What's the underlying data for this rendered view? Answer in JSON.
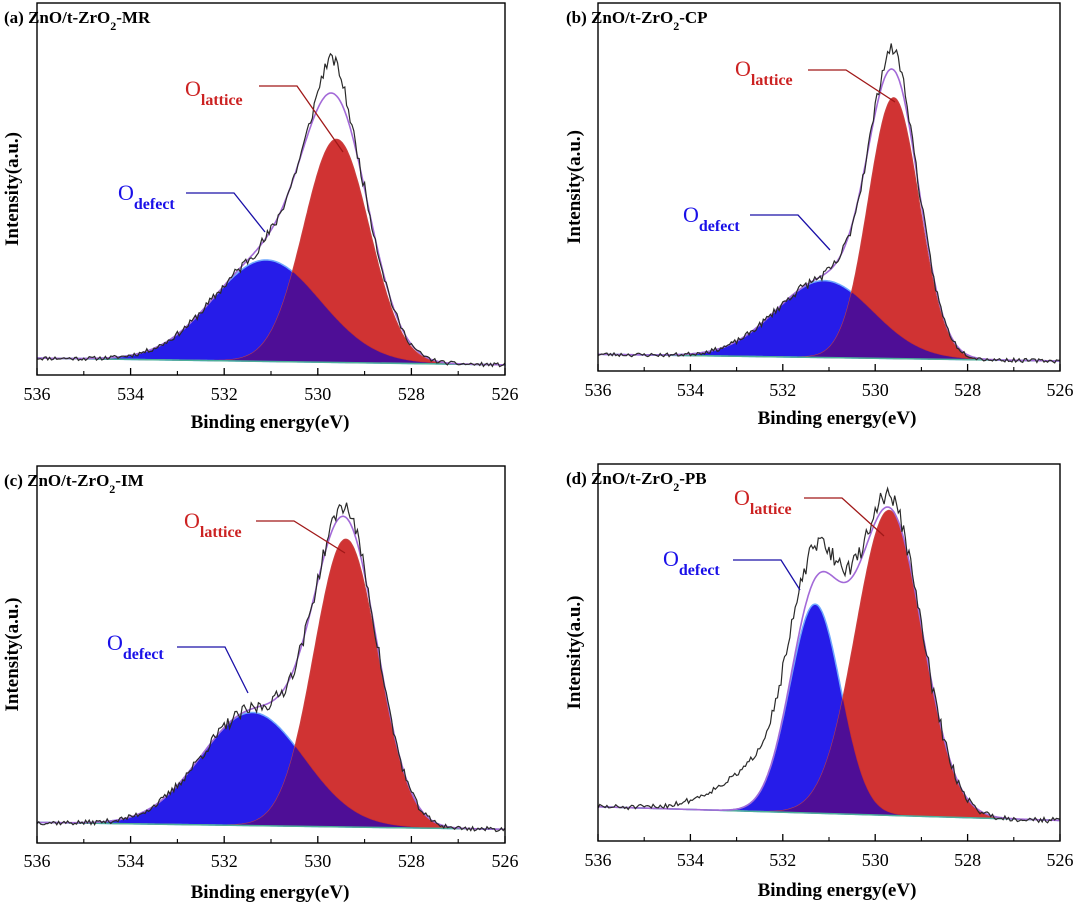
{
  "colors": {
    "lattice": "#cc2222",
    "defect": "#1a10e8",
    "defect_leader": "#1a10a8",
    "envelope": "#a36ad8",
    "raw": "#2a2a2a",
    "baseline": "#4caf9a"
  },
  "chart_data": [
    {
      "type": "area",
      "panel": "(a)",
      "title": "ZnO/t-ZrO",
      "title_sub": "2",
      "title_tail": "-MR",
      "xlabel": "Binding energy(eV)",
      "ylabel": "Intensity(a.u.)",
      "xlim": [
        536,
        526
      ],
      "xticks": [
        536,
        534,
        532,
        530,
        528,
        526
      ],
      "ylim": [
        0,
        1.1
      ],
      "baseline": [
        0.05,
        0.03
      ],
      "lattice": {
        "label": "O",
        "sub": "lattice",
        "center": 529.6,
        "height": 0.66,
        "sigma": 0.7
      },
      "defect": {
        "label": "O",
        "sub": "defect",
        "center": 531.1,
        "height": 0.3,
        "sigma": 1.15
      },
      "raw_bumps": [
        {
          "center": 529.7,
          "height": 0.1,
          "sigma": 0.25
        }
      ],
      "noise_seed": 11,
      "noise_amp": 0.006
    },
    {
      "type": "area",
      "panel": "(b)",
      "title": "ZnO/t-ZrO",
      "title_sub": "2",
      "title_tail": "-CP",
      "xlabel": "Binding energy(eV)",
      "ylabel": "Intensity(a.u.)",
      "xlim": [
        536,
        526
      ],
      "xticks": [
        536,
        534,
        532,
        530,
        528,
        526
      ],
      "ylim": [
        0,
        1.1
      ],
      "baseline": [
        0.05,
        0.03
      ],
      "lattice": {
        "label": "O",
        "sub": "lattice",
        "center": 529.6,
        "height": 0.78,
        "sigma": 0.55
      },
      "defect": {
        "label": "O",
        "sub": "defect",
        "center": 531.1,
        "height": 0.23,
        "sigma": 1.05
      },
      "raw_bumps": [
        {
          "center": 529.6,
          "height": 0.06,
          "sigma": 0.25
        }
      ],
      "noise_seed": 23,
      "noise_amp": 0.006
    },
    {
      "type": "area",
      "panel": "(c)",
      "title": "ZnO/t-ZrO",
      "title_sub": "2",
      "title_tail": "-IM",
      "xlabel": "Binding energy(eV)",
      "ylabel": "Intensity(a.u.)",
      "xlim": [
        536,
        526
      ],
      "xticks": [
        536,
        534,
        532,
        530,
        528,
        526
      ],
      "ylim": [
        0,
        1.1
      ],
      "baseline": [
        0.06,
        0.04
      ],
      "lattice": {
        "label": "O",
        "sub": "lattice",
        "center": 529.4,
        "height": 0.84,
        "sigma": 0.68
      },
      "defect": {
        "label": "O",
        "sub": "defect",
        "center": 531.4,
        "height": 0.33,
        "sigma": 1.1
      },
      "raw_bumps": [
        {
          "center": 529.4,
          "height": 0.03,
          "sigma": 0.3
        }
      ],
      "noise_seed": 37,
      "noise_amp": 0.007
    },
    {
      "type": "area",
      "panel": "(d)",
      "title": "ZnO/t-ZrO",
      "title_sub": "2",
      "title_tail": "-PB",
      "xlabel": "Binding energy(eV)",
      "ylabel": "Intensity(a.u.)",
      "xlim": [
        536,
        526
      ],
      "xticks": [
        536,
        534,
        532,
        530,
        528,
        526
      ],
      "ylim": [
        0,
        1.1
      ],
      "baseline": [
        0.1,
        0.06
      ],
      "lattice": {
        "label": "O",
        "sub": "lattice",
        "center": 529.7,
        "height": 0.89,
        "sigma": 0.72
      },
      "defect": {
        "label": "O",
        "sub": "defect",
        "center": 531.3,
        "height": 0.61,
        "sigma": 0.55
      },
      "raw_bumps": [
        {
          "center": 532.2,
          "height": 0.14,
          "sigma": 1.0
        },
        {
          "center": 529.7,
          "height": 0.03,
          "sigma": 0.3
        }
      ],
      "noise_seed": 51,
      "noise_amp": 0.008
    }
  ]
}
